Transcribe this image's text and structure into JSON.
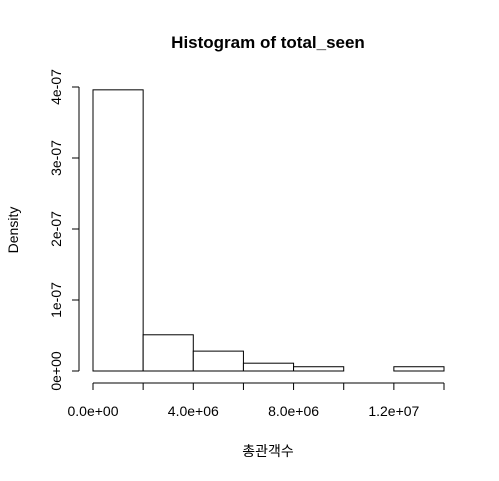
{
  "chart_data": {
    "type": "bar",
    "title": "Histogram of total_seen",
    "xlabel": "총관객수",
    "ylabel": "Density",
    "xlim": [
      0,
      14000000
    ],
    "ylim": [
      0,
      4e-07
    ],
    "x_ticks": [
      0,
      4000000,
      8000000,
      12000000
    ],
    "x_tick_labels": [
      "0.0e+00",
      "4.0e+06",
      "8.0e+06",
      "1.2e+07"
    ],
    "y_ticks": [
      0,
      1e-07,
      2e-07,
      3e-07,
      4e-07
    ],
    "y_tick_labels": [
      "0e+00",
      "1e-07",
      "2e-07",
      "3e-07",
      "4e-07"
    ],
    "bins": [
      {
        "start": 0,
        "end": 2000000,
        "density": 3.96e-07
      },
      {
        "start": 2000000,
        "end": 4000000,
        "density": 5.1e-08
      },
      {
        "start": 4000000,
        "end": 6000000,
        "density": 2.8e-08
      },
      {
        "start": 6000000,
        "end": 8000000,
        "density": 1.1e-08
      },
      {
        "start": 8000000,
        "end": 10000000,
        "density": 6e-09
      },
      {
        "start": 10000000,
        "end": 12000000,
        "density": 0
      },
      {
        "start": 12000000,
        "end": 14000000,
        "density": 6e-09
      }
    ],
    "grid": false,
    "legend": "none"
  }
}
